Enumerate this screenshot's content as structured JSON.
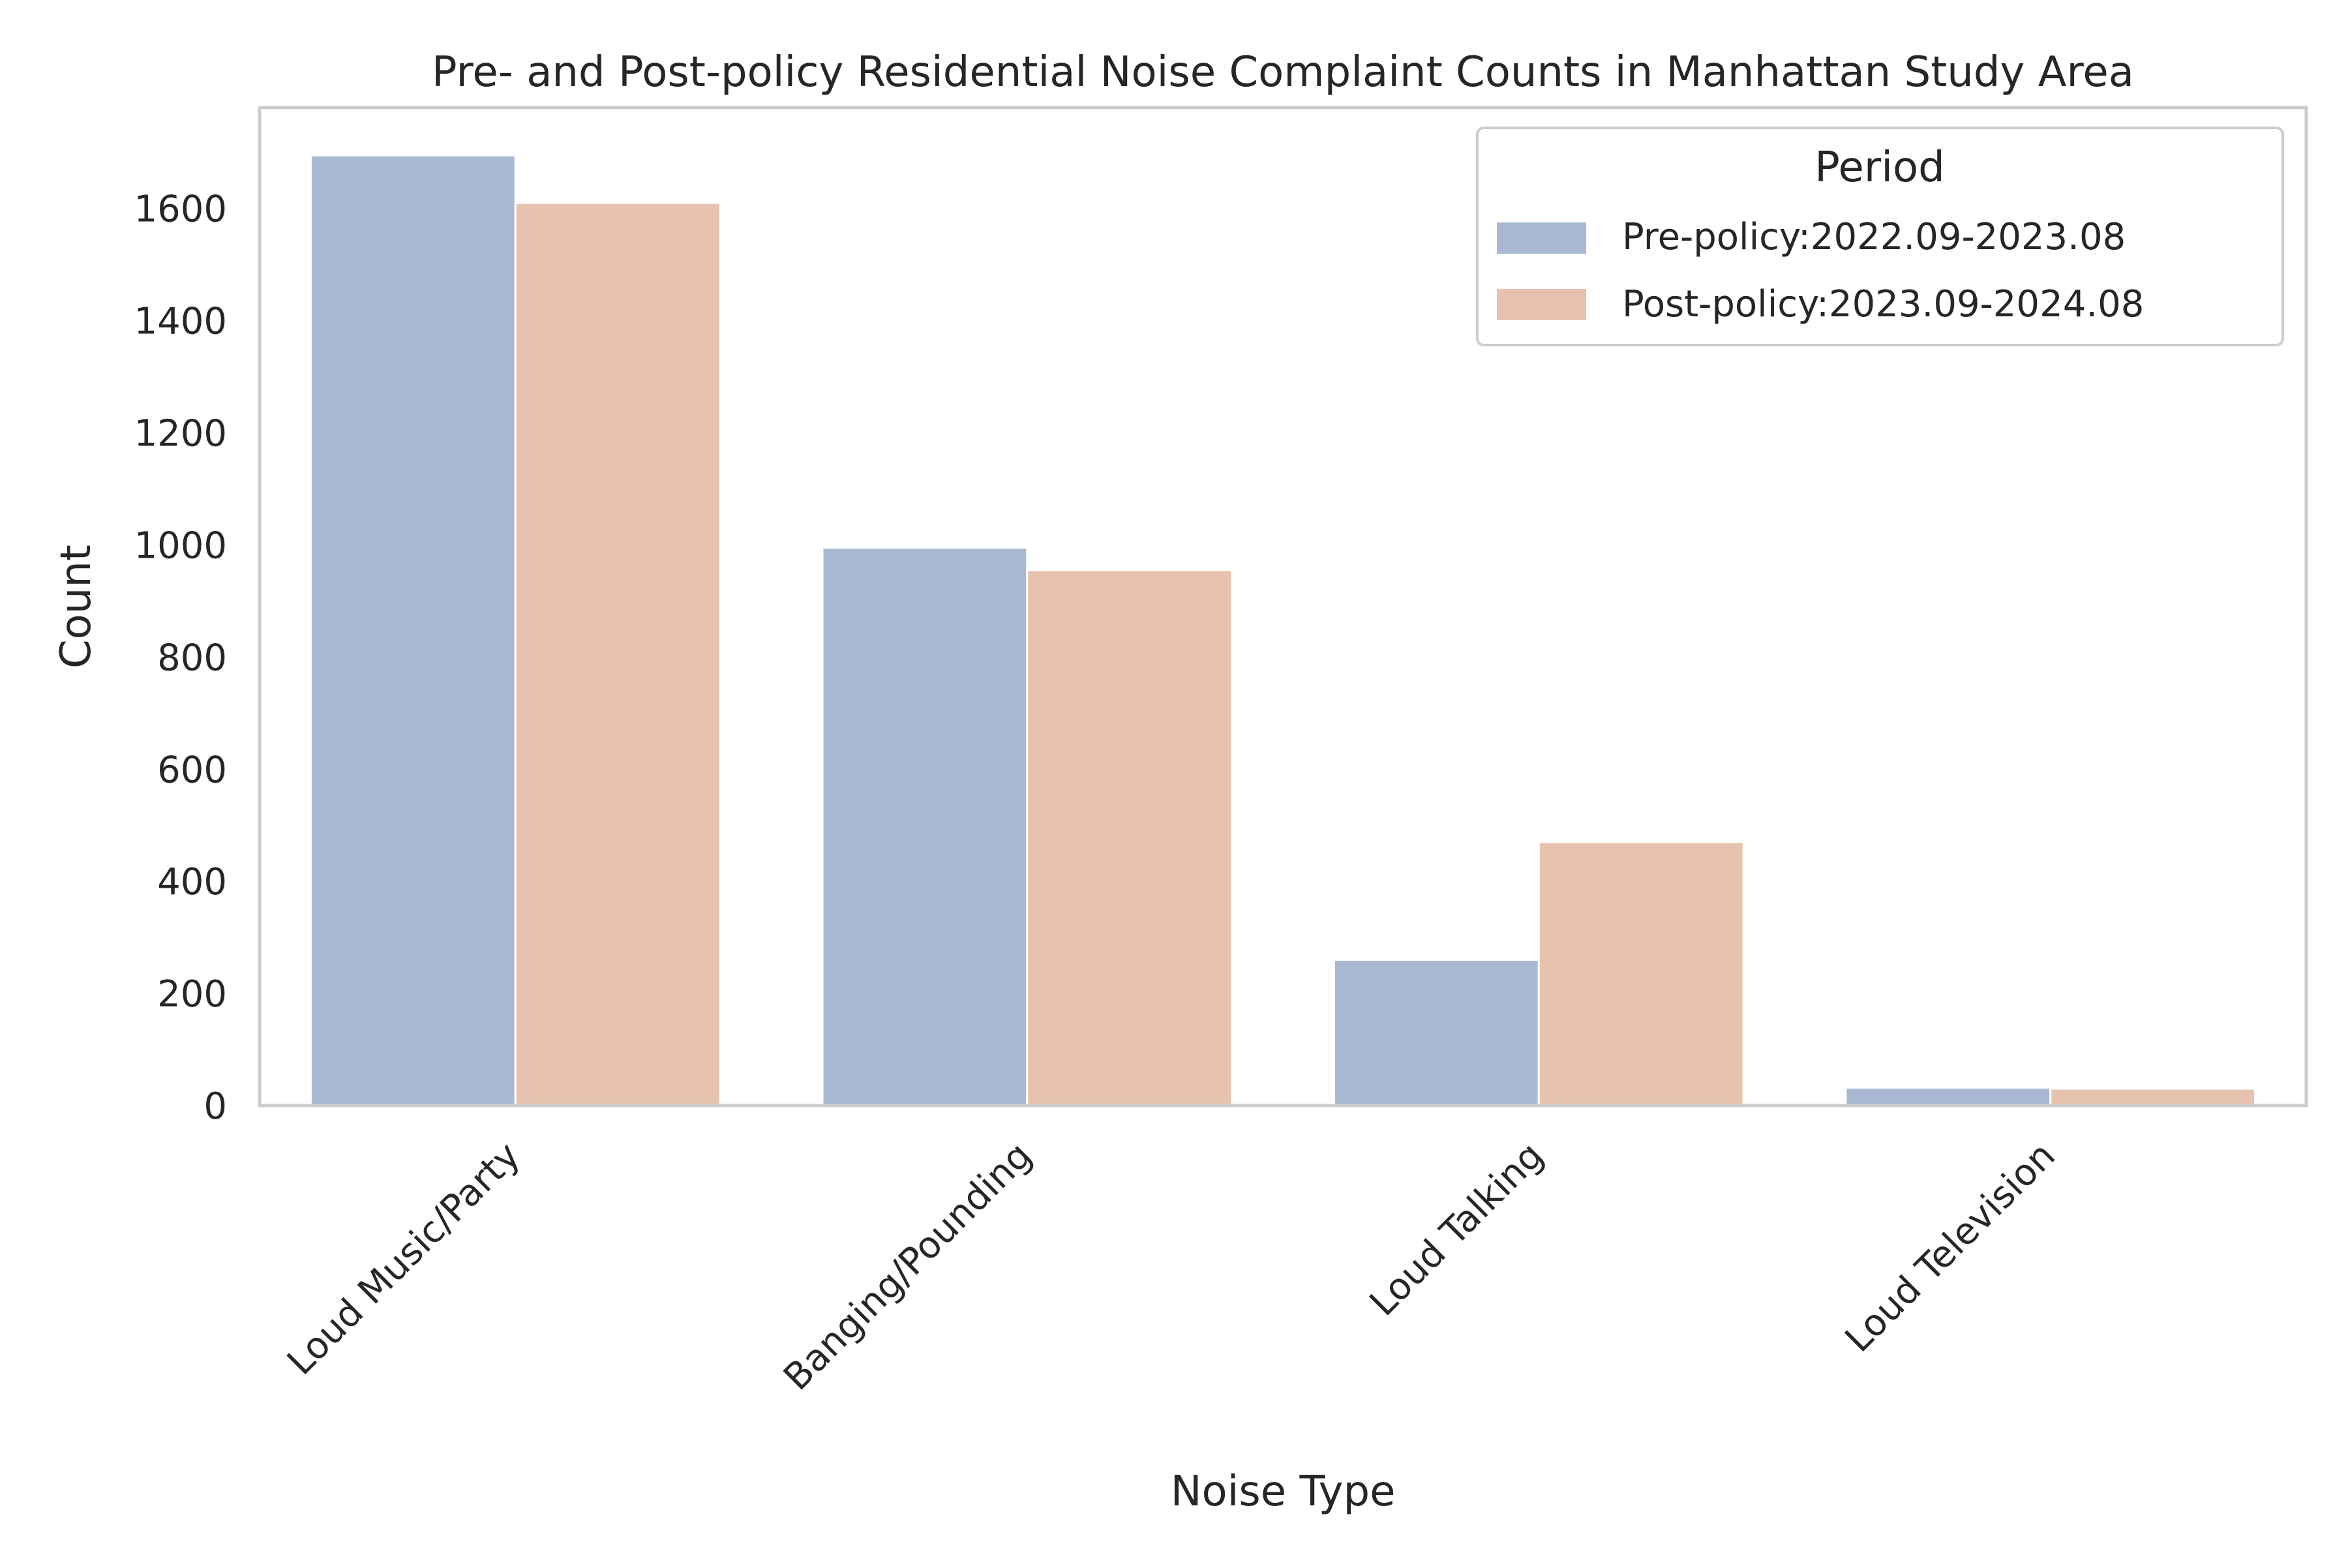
{
  "chart_data": {
    "type": "bar",
    "title": "Pre- and Post-policy Residential Noise Complaint Counts in Manhattan Study Area",
    "xlabel": "Noise Type",
    "ylabel": "Count",
    "categories": [
      "Loud Music/Party",
      "Banging/Pounding",
      "Loud Talking",
      "Loud Television"
    ],
    "series": [
      {
        "name": "Pre-policy:2022.09-2023.08",
        "values": [
          1695,
          995,
          260,
          32
        ],
        "color": "#aab9d3"
      },
      {
        "name": "Post-policy:2023.09-2024.08",
        "values": [
          1610,
          955,
          470,
          30
        ],
        "color": "#e7c3af"
      }
    ],
    "ylim": [
      0,
      1780
    ],
    "yticks": [
      0,
      200,
      400,
      600,
      800,
      1000,
      1200,
      1400,
      1600
    ],
    "grid": false,
    "legend": {
      "title": "Period",
      "placement": "top-right"
    }
  }
}
